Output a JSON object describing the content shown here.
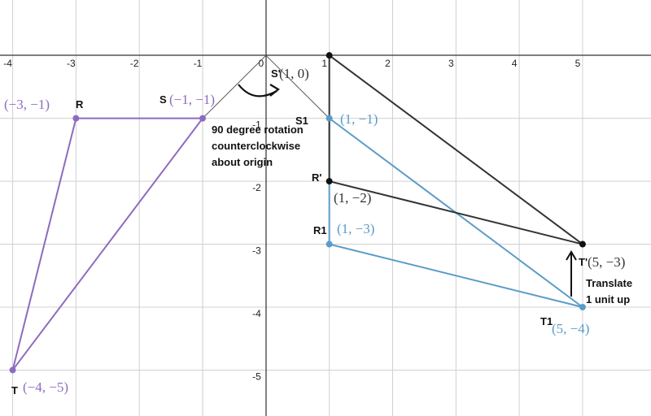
{
  "chart_data": {
    "type": "scatter",
    "xlim": [
      -4.2,
      6.08
    ],
    "ylim": [
      -5.73,
      0.88
    ],
    "xticks": [
      -4,
      -3,
      -2,
      -1,
      0,
      1,
      2,
      3,
      4,
      5
    ],
    "yticks": [
      -1,
      -2,
      -3,
      -4,
      -5
    ],
    "grid": true,
    "shapes": [
      {
        "color": "#8e6bbf",
        "x": [
          -3,
          -1,
          -4,
          -3
        ],
        "y": [
          -1,
          -1,
          -5,
          -1
        ]
      },
      {
        "color": "#5a9bc8",
        "x": [
          1,
          1,
          5,
          1
        ],
        "y": [
          -1,
          -3,
          -4,
          -1
        ]
      },
      {
        "color": "#333333",
        "x": [
          1,
          1,
          5,
          1
        ],
        "y": [
          0,
          -2,
          -3,
          0
        ]
      },
      {
        "color": "#555555",
        "x": [
          -1,
          0,
          1
        ],
        "y": [
          -1,
          0,
          -1
        ]
      }
    ],
    "points": [
      {
        "name": "R",
        "label": "(−3, −1)",
        "x": -3,
        "y": -1,
        "color": "#8e6bbf"
      },
      {
        "name": "S",
        "label": "(−1, −1)",
        "x": -1,
        "y": -1,
        "color": "#8e6bbf"
      },
      {
        "name": "T",
        "label": "(−4, −5)",
        "x": -4,
        "y": -5,
        "color": "#8e6bbf"
      },
      {
        "name": "S1",
        "label": "(1, −1)",
        "x": 1,
        "y": -1,
        "color": "#5a9bc8"
      },
      {
        "name": "R1",
        "label": "(1, −3)",
        "x": 1,
        "y": -3,
        "color": "#5a9bc8"
      },
      {
        "name": "T1",
        "label": "(5, −4)",
        "x": 5,
        "y": -4,
        "color": "#5a9bc8"
      },
      {
        "name": "S'",
        "label": "(1, 0)",
        "x": 1,
        "y": 0,
        "color": "#111111"
      },
      {
        "name": "R'",
        "label": "(1, −2)",
        "x": 1,
        "y": -2,
        "color": "#111111"
      },
      {
        "name": "T'",
        "label": "(5, −3)",
        "x": 5,
        "y": -3,
        "color": "#111111"
      }
    ],
    "annotations": [
      "90 degree rotation",
      "counterclockwise",
      "about origin",
      "Translate",
      "1 unit up"
    ]
  }
}
